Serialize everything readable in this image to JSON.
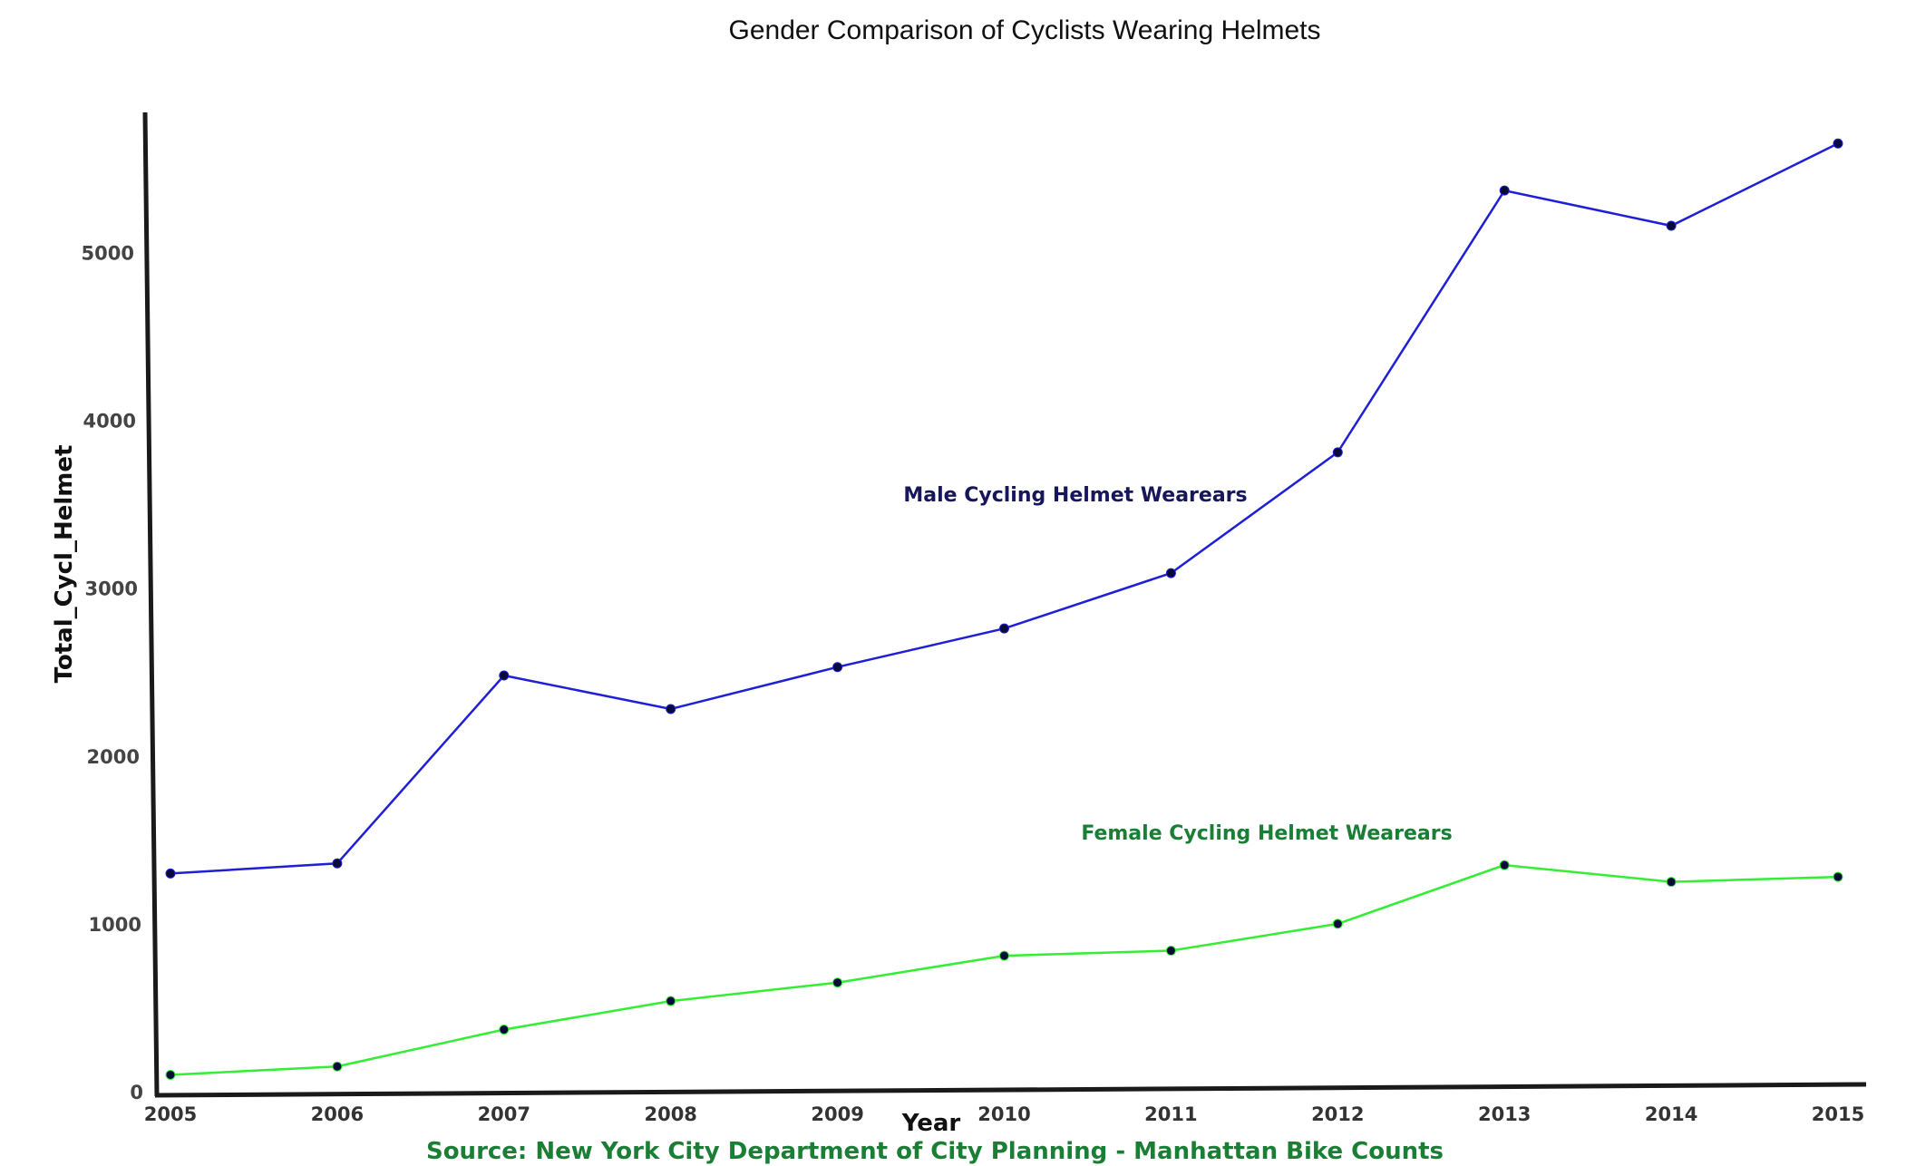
{
  "chart_data": {
    "type": "line",
    "title": "Gender Comparison of Cyclists Wearing Helmets",
    "xlabel": "Year",
    "ylabel": "Total_Cycl_Helmet",
    "x": [
      2005,
      2006,
      2007,
      2008,
      2009,
      2010,
      2011,
      2012,
      2013,
      2014,
      2015
    ],
    "x_tick_labels": [
      "2005",
      "2006",
      "2007",
      "2008",
      "2009",
      "2010",
      "2011",
      "2012",
      "2013",
      "2014",
      "2015"
    ],
    "y_ticks": [
      0,
      1000,
      2000,
      3000,
      4000,
      5000
    ],
    "y_tick_labels": [
      "0",
      "1000",
      "2000",
      "3000",
      "4000",
      "5000"
    ],
    "ylim": [
      0,
      5900
    ],
    "grid": false,
    "legend": "none",
    "series": [
      {
        "name": "Male Cycling Helmet Wearears",
        "color": "#1f1fd6",
        "label_color": "#16165a",
        "values": [
          1300,
          1360,
          2480,
          2280,
          2530,
          2760,
          3090,
          3810,
          5370,
          5160,
          5650
        ]
      },
      {
        "name": "Female Cycling Helmet Wearears",
        "color": "#33ee33",
        "label_color": "#1a7f35",
        "values": [
          100,
          150,
          370,
          540,
          650,
          810,
          840,
          1000,
          1350,
          1250,
          1280
        ]
      }
    ],
    "source": "Source: New York City Department of City Planning  - Manhattan Bike Counts",
    "source_color": "#1a7f35",
    "marker_color": "#0a0a3a"
  }
}
